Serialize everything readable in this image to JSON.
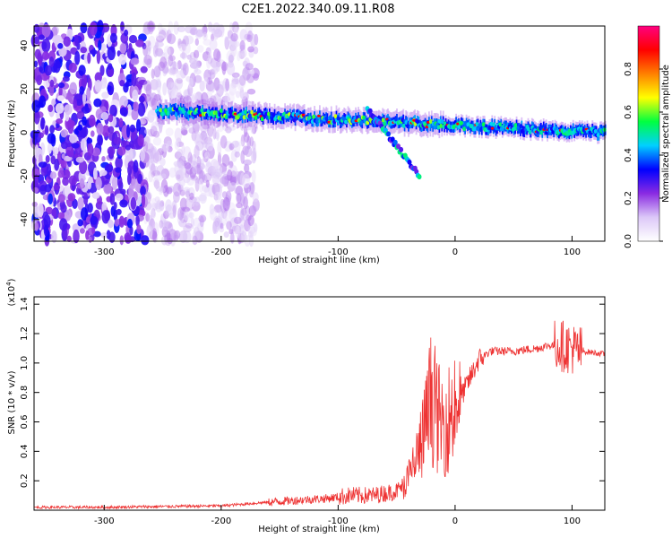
{
  "figure": {
    "title": "C2E1.2022.340.09.11.R08"
  },
  "colors": {
    "series_line": "#ee3333",
    "axis": "#000000",
    "colormap": [
      "#ffffff",
      "#dcc8f8",
      "#8a2be2",
      "#0000ff",
      "#00d0ff",
      "#00ff40",
      "#ffff00",
      "#ff8000",
      "#ff0000",
      "#ff0080"
    ]
  },
  "chart_data": [
    {
      "type": "heatmap",
      "title": "C2E1.2022.340.09.11.R08",
      "xlabel": "Height of straight line (km)",
      "ylabel": "Frequency (Hz)",
      "xlim": [
        -360,
        128
      ],
      "ylim": [
        -50,
        49
      ],
      "xticks": [
        -300,
        -200,
        -100,
        0,
        100
      ],
      "yticks": [
        -40,
        -20,
        0,
        20,
        40
      ],
      "colorbar": {
        "label": "Normalized spectral amplitude",
        "range": [
          0,
          1
        ],
        "ticks": [
          "0.0",
          "0.2",
          "0.4",
          "0.6",
          "0.8"
        ]
      },
      "features": [
        {
          "name": "scattered noise",
          "x_range": [
            -360,
            -170
          ],
          "freq_range": [
            -50,
            49
          ],
          "amplitude": [
            0.05,
            0.35
          ]
        },
        {
          "name": "main trace",
          "x_range": [
            -255,
            128
          ],
          "freq_start": 10,
          "freq_end": 0,
          "amplitude": [
            0.3,
            0.95
          ]
        },
        {
          "name": "branch",
          "x_range": [
            -75,
            -30
          ],
          "freq_start": 11,
          "freq_end": -20,
          "amplitude": [
            0.2,
            0.6
          ]
        }
      ]
    },
    {
      "type": "line",
      "xlabel": "Height of straight line (km)",
      "ylabel": "SNR (10 * v/v)",
      "yscale_label": "(x10",
      "yscale_exp": "4",
      "xlim": [
        -360,
        128
      ],
      "ylim": [
        0,
        1.45
      ],
      "xticks": [
        -300,
        -200,
        -100,
        0,
        100
      ],
      "yticks": [
        "0.2",
        "0.4",
        "0.6",
        "0.8",
        "1.0",
        "1.2",
        "1.4"
      ],
      "series": [
        {
          "name": "SNR",
          "x": [
            -360,
            -300,
            -250,
            -200,
            -150,
            -110,
            -90,
            -70,
            -50,
            -40,
            -30,
            -25,
            -20,
            -15,
            -10,
            -5,
            0,
            10,
            20,
            30,
            50,
            70,
            80,
            90,
            100,
            105,
            110,
            128
          ],
          "y": [
            0.02,
            0.02,
            0.025,
            0.03,
            0.06,
            0.08,
            0.1,
            0.1,
            0.13,
            0.2,
            0.4,
            0.55,
            0.75,
            0.6,
            0.55,
            0.6,
            0.7,
            0.85,
            1.02,
            1.08,
            1.08,
            1.1,
            1.12,
            1.12,
            1.1,
            1.08,
            1.08,
            1.06
          ]
        }
      ]
    }
  ]
}
